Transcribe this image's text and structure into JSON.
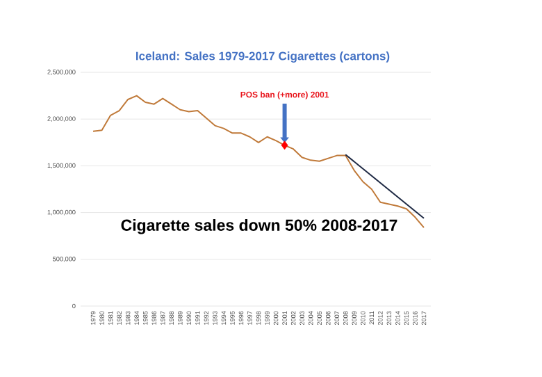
{
  "chart_data": {
    "type": "line",
    "title": "Iceland: Sales 1979-2017 Cigarettes (cartons)",
    "categories": [
      "1979",
      "1980",
      "1981",
      "1982",
      "1983",
      "1984",
      "1985",
      "1986",
      "1987",
      "1988",
      "1989",
      "1990",
      "1991",
      "1992",
      "1993",
      "1994",
      "1995",
      "1996",
      "1997",
      "1998",
      "1999",
      "2000",
      "2001",
      "2002",
      "2003",
      "2004",
      "2005",
      "2006",
      "2007",
      "2008",
      "2009",
      "2010",
      "2011",
      "2012",
      "2013",
      "2014",
      "2015",
      "2016",
      "2017"
    ],
    "series": [
      {
        "color": "#c07a3a",
        "values": [
          1870000,
          1880000,
          2040000,
          2090000,
          2210000,
          2250000,
          2180000,
          2160000,
          2220000,
          2160000,
          2100000,
          2080000,
          2090000,
          2010000,
          1930000,
          1900000,
          1850000,
          1850000,
          1810000,
          1750000,
          1810000,
          1770000,
          1720000,
          1680000,
          1590000,
          1560000,
          1550000,
          1580000,
          1610000,
          1610000,
          1450000,
          1330000,
          1250000,
          1110000,
          1090000,
          1070000,
          1040000,
          950000,
          840000
        ]
      },
      {
        "color": "#1f2a44",
        "values": [
          null,
          null,
          null,
          null,
          null,
          null,
          null,
          null,
          null,
          null,
          null,
          null,
          null,
          null,
          null,
          null,
          null,
          null,
          null,
          null,
          null,
          null,
          null,
          null,
          null,
          null,
          null,
          null,
          null,
          1620000,
          null,
          null,
          null,
          null,
          null,
          null,
          null,
          null,
          940000
        ]
      },
      {
        "type": "scatter",
        "color": "#ff0000",
        "marker": "diamond",
        "values": [
          null,
          null,
          null,
          null,
          null,
          null,
          null,
          null,
          null,
          null,
          null,
          null,
          null,
          null,
          null,
          null,
          null,
          null,
          null,
          null,
          null,
          null,
          1720000,
          null,
          null,
          null,
          null,
          null,
          null,
          null,
          null,
          null,
          null,
          null,
          null,
          null,
          null,
          null,
          null
        ]
      }
    ],
    "ylim": [
      0,
      2500000
    ],
    "yticks": [
      0,
      {
        "value": 500000,
        "label": "500,000"
      },
      {
        "value": 1000000,
        "label": "1,000,000"
      },
      {
        "value": 1500000,
        "label": "1,500,000"
      },
      {
        "value": 2000000,
        "label": "2,000,000"
      },
      {
        "value": 2500000,
        "label": "2,500,000"
      }
    ],
    "grid": "y",
    "annotations": [
      {
        "text": "POS ban (+more) 2001",
        "x": "2001",
        "y": 1720000
      },
      "Cigarette sales down 50% 2008-2017"
    ]
  }
}
